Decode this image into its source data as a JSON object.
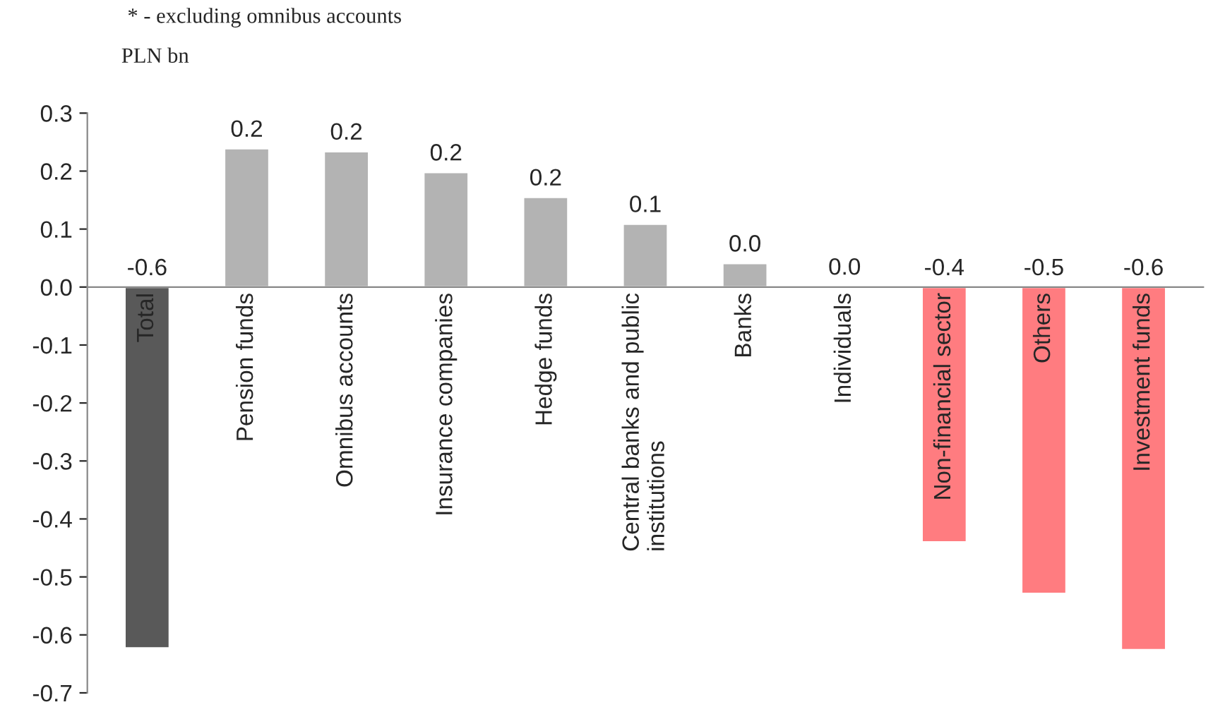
{
  "chart_data": {
    "type": "bar",
    "categories": [
      "Total",
      "Pension funds",
      "Omnibus accounts",
      "Insurance companies",
      "Hedge funds",
      "Central banks and public\ninstitutions",
      "Banks",
      "Individuals",
      "Non-financial sector",
      "Others",
      "Investment funds"
    ],
    "values": [
      -0.623,
      0.239,
      0.234,
      0.198,
      0.155,
      0.109,
      0.041,
      0.001,
      -0.44,
      -0.529,
      -0.626
    ],
    "colors": [
      "#595959",
      "#b3b3b3",
      "#b3b3b3",
      "#b3b3b3",
      "#b3b3b3",
      "#b3b3b3",
      "#b3b3b3",
      "#b3b3b3",
      "#ff7c80",
      "#ff7c80",
      "#ff7c80"
    ],
    "value_labels": [
      "-0.6",
      "0.2",
      "0.2",
      "0.2",
      "0.2",
      "0.1",
      "0.0",
      "0.0",
      "-0.4",
      "-0.5",
      "-0.6"
    ],
    "ylabel": "PLN bn",
    "annotations": [
      "* - excluding omnibus accounts"
    ],
    "ylim": [
      -0.7,
      0.3
    ],
    "yticks": [
      {
        "value": -0.7,
        "label": "-0.7"
      },
      {
        "value": -0.6,
        "label": "-0.6"
      },
      {
        "value": -0.5,
        "label": "-0.5"
      },
      {
        "value": -0.4,
        "label": "-0.4"
      },
      {
        "value": -0.3,
        "label": "-0.3"
      },
      {
        "value": -0.2,
        "label": "-0.2"
      },
      {
        "value": -0.1,
        "label": "-0.1"
      },
      {
        "value": 0.0,
        "label": "0.0"
      },
      {
        "value": 0.1,
        "label": "0.1"
      },
      {
        "value": 0.2,
        "label": "0.2"
      },
      {
        "value": 0.3,
        "label": "0.3"
      }
    ],
    "grid": false
  }
}
